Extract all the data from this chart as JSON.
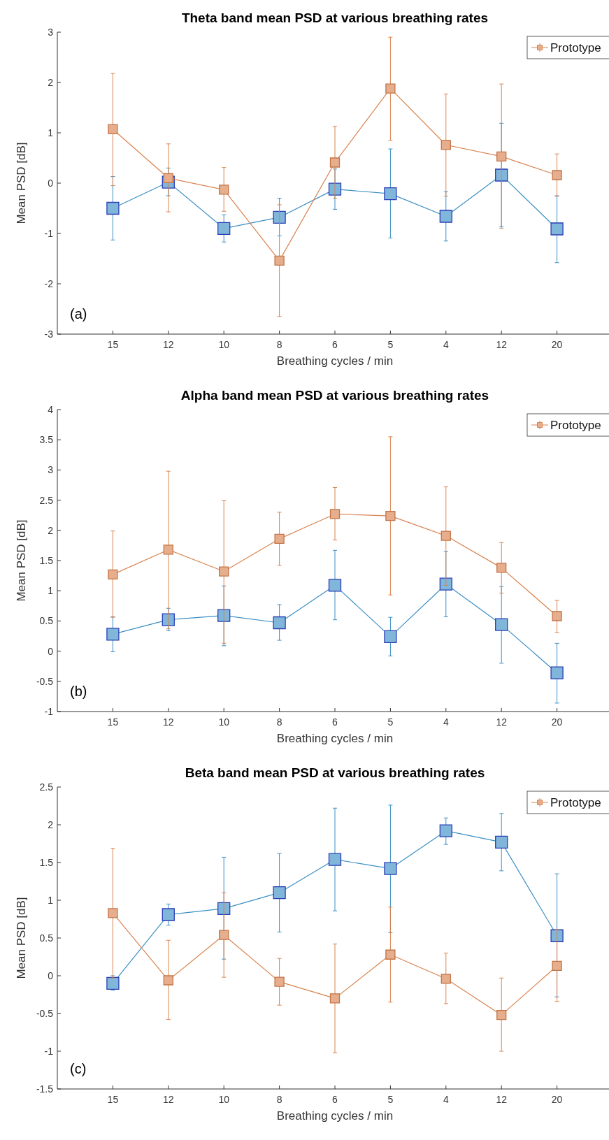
{
  "chart_data": [
    {
      "type": "line",
      "title": "Theta band mean PSD at various breathing rates",
      "xlabel": "Breathing cycles / min",
      "ylabel": "Mean PSD [dB]",
      "annotations": [
        "(a)"
      ],
      "categories": [
        "15",
        "12",
        "10",
        "8",
        "6",
        "5",
        "4",
        "12",
        "20"
      ],
      "ylim": [
        -3,
        3
      ],
      "yticks": [
        -3,
        -2,
        -1,
        0,
        1,
        2,
        3
      ],
      "legend": "top right",
      "marker": "square",
      "line_style": "solid",
      "grid": false,
      "series": [
        {
          "color": "#3c8fc4",
          "values": [
            -0.5,
            0.02,
            -0.9,
            -0.68,
            -0.12,
            -0.21,
            -0.66,
            0.16,
            -0.91
          ],
          "errors": [
            [
              -1.13,
              0.13
            ],
            [
              -0.25,
              0.3
            ],
            [
              -1.17,
              -0.63
            ],
            [
              -1.05,
              -0.3
            ],
            [
              -0.52,
              0.28
            ],
            [
              -1.09,
              0.68
            ],
            [
              -1.15,
              -0.17
            ],
            [
              -0.87,
              1.19
            ],
            [
              -1.58,
              -0.25
            ]
          ]
        },
        {
          "name": "Prototype",
          "color": "#d9834f",
          "values": [
            1.07,
            0.1,
            -0.13,
            -1.54,
            0.41,
            1.88,
            0.76,
            0.53,
            0.16
          ],
          "errors": [
            [
              -0.05,
              2.18
            ],
            [
              -0.57,
              0.78
            ],
            [
              -0.56,
              0.31
            ],
            [
              -2.65,
              -0.43
            ],
            [
              -0.3,
              1.13
            ],
            [
              0.85,
              2.9
            ],
            [
              -0.26,
              1.77
            ],
            [
              -0.9,
              1.97
            ],
            [
              -0.26,
              0.58
            ]
          ]
        }
      ]
    },
    {
      "type": "line",
      "title": "Alpha band mean PSD at various breathing rates",
      "xlabel": "Breathing cycles / min",
      "ylabel": "Mean PSD [dB]",
      "annotations": [
        "(b)"
      ],
      "categories": [
        "15",
        "12",
        "10",
        "8",
        "6",
        "5",
        "4",
        "12",
        "20"
      ],
      "ylim": [
        -1,
        4
      ],
      "yticks": [
        -1,
        -0.5,
        0,
        0.5,
        1,
        1.5,
        2,
        2.5,
        3,
        3.5,
        4
      ],
      "legend": "top right",
      "marker": "square",
      "line_style": "solid",
      "grid": false,
      "series": [
        {
          "color": "#3c8fc4",
          "values": [
            0.28,
            0.52,
            0.59,
            0.47,
            1.09,
            0.24,
            1.11,
            0.44,
            -0.36
          ],
          "errors": [
            [
              -0.01,
              0.57
            ],
            [
              0.34,
              0.71
            ],
            [
              0.09,
              1.08
            ],
            [
              0.18,
              0.77
            ],
            [
              0.52,
              1.67
            ],
            [
              -0.08,
              0.56
            ],
            [
              0.57,
              1.65
            ],
            [
              -0.2,
              1.07
            ],
            [
              -0.86,
              0.13
            ]
          ]
        },
        {
          "name": "Prototype",
          "color": "#d9834f",
          "values": [
            1.27,
            1.68,
            1.32,
            1.86,
            2.27,
            2.24,
            1.91,
            1.38,
            0.58
          ],
          "errors": [
            [
              0.56,
              1.99
            ],
            [
              0.37,
              2.98
            ],
            [
              0.13,
              2.49
            ],
            [
              1.42,
              2.3
            ],
            [
              1.84,
              2.71
            ],
            [
              0.93,
              3.55
            ],
            [
              1.09,
              2.72
            ],
            [
              0.96,
              1.8
            ],
            [
              0.31,
              0.84
            ]
          ]
        }
      ]
    },
    {
      "type": "line",
      "title": "Beta band mean PSD at various breathing rates",
      "xlabel": "Breathing cycles / min",
      "ylabel": "Mean PSD [dB]",
      "annotations": [
        "(c)"
      ],
      "categories": [
        "15",
        "12",
        "10",
        "8",
        "6",
        "5",
        "4",
        "12",
        "20"
      ],
      "ylim": [
        -1.5,
        2.5
      ],
      "yticks": [
        -1.5,
        -1,
        -0.5,
        0,
        0.5,
        1,
        1.5,
        2,
        2.5
      ],
      "legend": "top right",
      "marker": "square",
      "line_style": "solid",
      "grid": false,
      "series": [
        {
          "color": "#3c8fc4",
          "values": [
            -0.1,
            0.81,
            0.89,
            1.1,
            1.54,
            1.42,
            1.92,
            1.77,
            0.53
          ],
          "errors": [
            [
              -0.19,
              0.0
            ],
            [
              0.67,
              0.95
            ],
            [
              0.22,
              1.57
            ],
            [
              0.58,
              1.62
            ],
            [
              0.86,
              2.22
            ],
            [
              0.57,
              2.26
            ],
            [
              1.74,
              2.09
            ],
            [
              1.39,
              2.15
            ],
            [
              -0.28,
              1.35
            ]
          ]
        },
        {
          "name": "Prototype",
          "color": "#d9834f",
          "values": [
            0.83,
            -0.06,
            0.54,
            -0.08,
            -0.3,
            0.28,
            -0.04,
            -0.52,
            0.13
          ],
          "errors": [
            [
              -0.03,
              1.69
            ],
            [
              -0.58,
              0.47
            ],
            [
              -0.02,
              1.1
            ],
            [
              -0.39,
              0.23
            ],
            [
              -1.02,
              0.42
            ],
            [
              -0.35,
              0.91
            ],
            [
              -0.37,
              0.3
            ],
            [
              -1.0,
              -0.03
            ],
            [
              -0.34,
              0.61
            ]
          ]
        }
      ]
    }
  ]
}
